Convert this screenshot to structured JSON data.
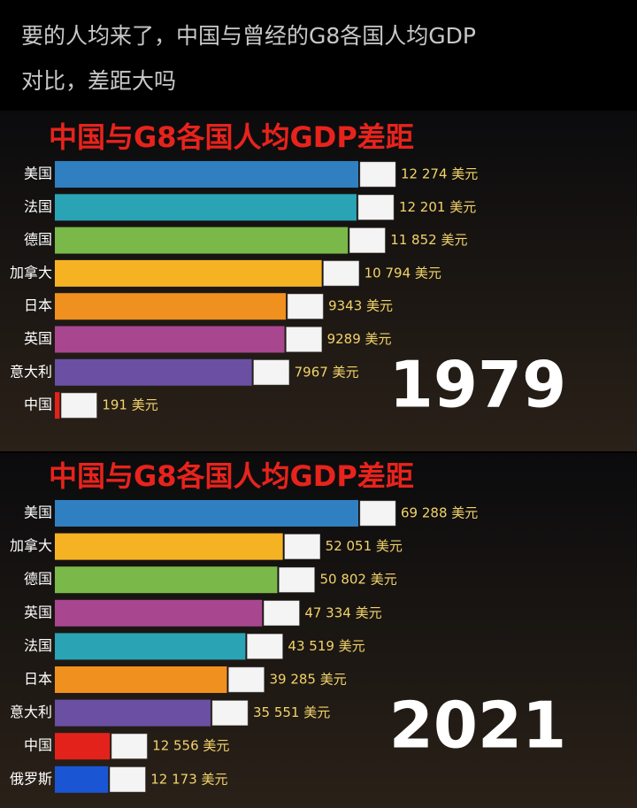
{
  "post": {
    "caption": [
      "要的人均来了，中国与曾经的G8各国人均GDP",
      "对比，差距大吗"
    ]
  },
  "chart_data": [
    {
      "type": "hbar",
      "title": "中国与G8各国人均GDP差距",
      "annotation": "1979",
      "categories": [
        "美国",
        "法国",
        "德国",
        "加拿大",
        "日本",
        "英国",
        "意大利",
        "中国"
      ],
      "values": [
        12274,
        12201,
        11852,
        10794,
        9343,
        9289,
        7967,
        191
      ],
      "value_labels": [
        "12 274 美元",
        "12 201 美元",
        "11 852 美元",
        "10 794 美元",
        "9343 美元",
        "9289 美元",
        "7967 美元",
        "191 美元"
      ],
      "colors": [
        "#2f7fc1",
        "#2aa3b5",
        "#7bb84a",
        "#f5b324",
        "#f0901e",
        "#a8468f",
        "#6a4fa3",
        "#e3221b"
      ]
    },
    {
      "type": "hbar",
      "title": "中国与G8各国人均GDP差距",
      "annotation": "2021",
      "categories": [
        "美国",
        "加拿大",
        "德国",
        "英国",
        "法国",
        "日本",
        "意大利",
        "中国",
        "俄罗斯"
      ],
      "values": [
        69288,
        52051,
        50802,
        47334,
        43519,
        39285,
        35551,
        12556,
        12173
      ],
      "value_labels": [
        "69 288 美元",
        "52 051 美元",
        "50 802 美元",
        "47 334 美元",
        "43 519 美元",
        "39 285 美元",
        "35 551 美元",
        "12 556 美元",
        "12 173 美元"
      ],
      "colors": [
        "#2f7fc1",
        "#f5b324",
        "#7bb84a",
        "#a8468f",
        "#2aa3b5",
        "#f0901e",
        "#6a4fa3",
        "#e3221b",
        "#1a56d4"
      ]
    }
  ]
}
